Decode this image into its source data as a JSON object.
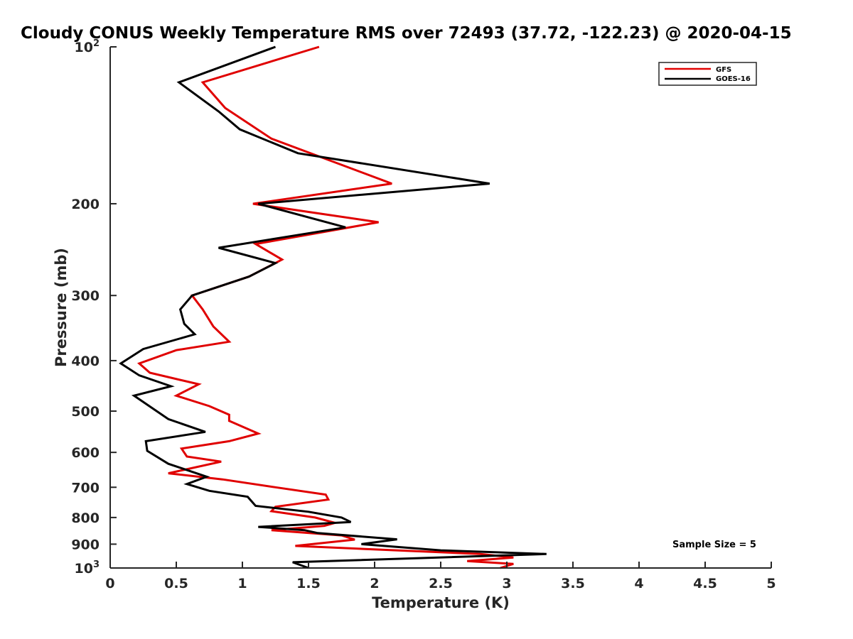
{
  "chart_data": {
    "type": "line",
    "title": "Cloudy CONUS Weekly Temperature RMS over 72493 (37.72, -122.23) @ 2020-04-15",
    "xlabel": "Temperature (K)",
    "ylabel": "Pressure (mb)",
    "xlim": [
      0,
      5
    ],
    "ylim": [
      100,
      1000
    ],
    "yscale": "log",
    "yreversed": true,
    "grid": false,
    "legend_position": "top-right",
    "x_ticks": [
      "0",
      "0.5",
      "1",
      "1.5",
      "2",
      "2.5",
      "3",
      "3.5",
      "4",
      "4.5",
      "5"
    ],
    "y_ticks": [
      {
        "value": 100,
        "base": "10",
        "exp": "2"
      },
      {
        "value": 200,
        "label": "200"
      },
      {
        "value": 300,
        "label": "300"
      },
      {
        "value": 400,
        "label": "400"
      },
      {
        "value": 500,
        "label": "500"
      },
      {
        "value": 600,
        "label": "600"
      },
      {
        "value": 700,
        "label": "700"
      },
      {
        "value": 800,
        "label": "800"
      },
      {
        "value": 900,
        "label": "900"
      },
      {
        "value": 1000,
        "base": "10",
        "exp": "3"
      }
    ],
    "annotation": "Sample Size = 5",
    "series": [
      {
        "name": "GFS",
        "color": "#e00000",
        "points": [
          [
            1.58,
            100
          ],
          [
            0.7,
            117
          ],
          [
            0.87,
            131
          ],
          [
            1.22,
            150
          ],
          [
            2.13,
            183
          ],
          [
            1.08,
            200
          ],
          [
            2.03,
            217
          ],
          [
            1.1,
            239
          ],
          [
            1.3,
            256
          ],
          [
            1.05,
            276
          ],
          [
            0.62,
            300
          ],
          [
            0.7,
            319
          ],
          [
            0.78,
            344
          ],
          [
            0.9,
            368
          ],
          [
            0.5,
            382
          ],
          [
            0.22,
            405
          ],
          [
            0.3,
            422
          ],
          [
            0.67,
            444
          ],
          [
            0.5,
            467
          ],
          [
            0.75,
            489
          ],
          [
            0.9,
            508
          ],
          [
            0.9,
            522
          ],
          [
            1.12,
            552
          ],
          [
            0.9,
            571
          ],
          [
            0.54,
            590
          ],
          [
            0.58,
            611
          ],
          [
            0.84,
            625
          ],
          [
            0.44,
            658
          ],
          [
            0.85,
            676
          ],
          [
            1.25,
            700
          ],
          [
            1.63,
            723
          ],
          [
            1.65,
            739
          ],
          [
            1.25,
            763
          ],
          [
            1.22,
            778
          ],
          [
            1.55,
            800
          ],
          [
            1.7,
            819
          ],
          [
            1.62,
            830
          ],
          [
            1.22,
            846
          ],
          [
            1.75,
            866
          ],
          [
            1.85,
            882
          ],
          [
            1.4,
            907
          ],
          [
            2.8,
            940
          ],
          [
            3.05,
            955
          ],
          [
            2.7,
            970
          ],
          [
            3.05,
            982
          ],
          [
            2.95,
            1000
          ]
        ]
      },
      {
        "name": "GOES-16",
        "color": "#000000",
        "points": [
          [
            1.25,
            100
          ],
          [
            0.52,
            117
          ],
          [
            0.82,
            133
          ],
          [
            0.98,
            144
          ],
          [
            1.42,
            160
          ],
          [
            2.87,
            183
          ],
          [
            1.12,
            200
          ],
          [
            1.78,
            222
          ],
          [
            0.82,
            243
          ],
          [
            1.25,
            260
          ],
          [
            1.05,
            276
          ],
          [
            0.62,
            300
          ],
          [
            0.53,
            319
          ],
          [
            0.56,
            340
          ],
          [
            0.64,
            356
          ],
          [
            0.25,
            380
          ],
          [
            0.08,
            405
          ],
          [
            0.22,
            427
          ],
          [
            0.46,
            448
          ],
          [
            0.18,
            467
          ],
          [
            0.44,
            518
          ],
          [
            0.72,
            548
          ],
          [
            0.27,
            571
          ],
          [
            0.28,
            596
          ],
          [
            0.44,
            631
          ],
          [
            0.73,
            668
          ],
          [
            0.58,
            690
          ],
          [
            0.75,
            711
          ],
          [
            1.04,
            730
          ],
          [
            1.1,
            760
          ],
          [
            1.5,
            780
          ],
          [
            1.75,
            800
          ],
          [
            1.82,
            816
          ],
          [
            1.12,
            834
          ],
          [
            1.47,
            846
          ],
          [
            1.57,
            857
          ],
          [
            2.17,
            881
          ],
          [
            1.9,
            900
          ],
          [
            2.5,
            925
          ],
          [
            3.3,
            940
          ],
          [
            1.38,
            975
          ],
          [
            1.5,
            1000
          ]
        ]
      }
    ]
  }
}
